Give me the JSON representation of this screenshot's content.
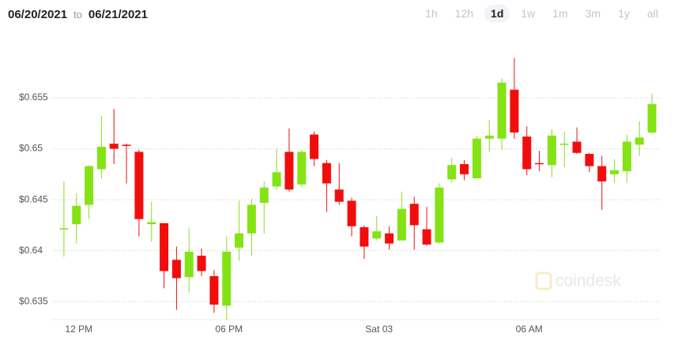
{
  "header": {
    "from": "06/20/2021",
    "to_word": "to",
    "to": "06/21/2021",
    "ranges": [
      "1h",
      "12h",
      "1d",
      "1w",
      "1m",
      "3m",
      "1y",
      "all"
    ],
    "selected": 2
  },
  "watermark": "coindesk",
  "chart_data": {
    "type": "candlestick",
    "categories": [
      null,
      "12 PM",
      null,
      null,
      null,
      null,
      null,
      null,
      null,
      null,
      null,
      null,
      null,
      "06 PM",
      null,
      null,
      null,
      null,
      null,
      null,
      null,
      null,
      null,
      null,
      null,
      "Sat 03",
      null,
      null,
      null,
      null,
      null,
      null,
      null,
      null,
      null,
      null,
      null,
      "06 AM",
      null,
      null,
      null,
      null,
      null,
      null,
      null,
      null,
      null,
      null
    ],
    "open": [
      0.6422,
      0.6426,
      0.6445,
      0.648,
      0.6505,
      0.6504,
      0.6497,
      0.6426,
      0.6427,
      0.6391,
      0.6374,
      0.6395,
      0.6375,
      0.6346,
      0.6403,
      0.6417,
      0.6447,
      0.6463,
      0.6497,
      0.6465,
      0.6514,
      0.6486,
      0.646,
      0.6449,
      0.6423,
      0.6412,
      0.6417,
      0.641,
      0.6446,
      0.6421,
      0.6408,
      0.647,
      0.6485,
      0.6471,
      0.651,
      0.651,
      0.6558,
      0.6512,
      0.6486,
      0.6484,
      0.6504,
      0.6507,
      0.6495,
      0.6483,
      0.6475,
      0.6478,
      0.6504,
      0.6516
    ],
    "high": [
      0.6468,
      0.6456,
      0.6484,
      0.6532,
      0.6539,
      0.6505,
      0.6499,
      0.6448,
      0.6427,
      0.6404,
      0.6422,
      0.6402,
      0.6381,
      0.6414,
      0.6449,
      0.6451,
      0.6468,
      0.65,
      0.652,
      0.6499,
      0.6517,
      0.6489,
      0.6486,
      0.6452,
      0.6425,
      0.6434,
      0.6424,
      0.6458,
      0.6453,
      0.6443,
      0.6466,
      0.6491,
      0.6489,
      0.6513,
      0.6528,
      0.6569,
      0.6589,
      0.6522,
      0.6498,
      0.6519,
      0.6517,
      0.6521,
      0.6496,
      0.6493,
      0.649,
      0.6514,
      0.6527,
      0.6554
    ],
    "low": [
      0.6394,
      0.6407,
      0.6431,
      0.6471,
      0.6485,
      0.6466,
      0.6414,
      0.6409,
      0.6363,
      0.6342,
      0.6359,
      0.6375,
      0.6339,
      0.6332,
      0.639,
      0.6395,
      0.6417,
      0.646,
      0.6458,
      0.6462,
      0.6483,
      0.6438,
      0.6445,
      0.6414,
      0.6392,
      0.641,
      0.6401,
      0.641,
      0.6401,
      0.6405,
      0.6407,
      0.6467,
      0.6469,
      0.6471,
      0.6497,
      0.6499,
      0.651,
      0.6474,
      0.6478,
      0.6472,
      0.6482,
      0.6495,
      0.6477,
      0.644,
      0.6467,
      0.6467,
      0.6493,
      0.6515
    ],
    "close": [
      0.6422,
      0.6444,
      0.6483,
      0.6502,
      0.65,
      0.6503,
      0.6431,
      0.6428,
      0.638,
      0.6373,
      0.6399,
      0.638,
      0.6347,
      0.6399,
      0.6417,
      0.6445,
      0.6462,
      0.6477,
      0.646,
      0.6497,
      0.649,
      0.6466,
      0.6448,
      0.6424,
      0.6404,
      0.6419,
      0.6407,
      0.6441,
      0.6425,
      0.6406,
      0.6462,
      0.6484,
      0.6475,
      0.651,
      0.6513,
      0.6565,
      0.6516,
      0.648,
      0.6485,
      0.6513,
      0.6505,
      0.6496,
      0.6483,
      0.6468,
      0.6479,
      0.6507,
      0.6511,
      0.6544
    ],
    "up_color": "#84e314",
    "down_color": "#f20d0d",
    "ylim": [
      0.633,
      0.66
    ],
    "yticks": [
      {
        "value": 0.635,
        "label": "$0.635"
      },
      {
        "value": 0.64,
        "label": "$0.64"
      },
      {
        "value": 0.645,
        "label": "$0.645"
      },
      {
        "value": 0.65,
        "label": "$0.65"
      },
      {
        "value": 0.655,
        "label": "$0.655"
      }
    ],
    "grid": true
  }
}
